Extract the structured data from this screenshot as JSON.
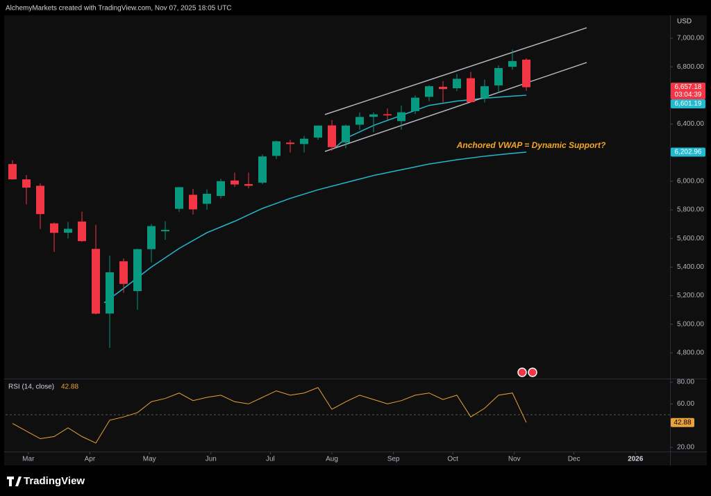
{
  "header": "AlchemyMarkets created with TradingView.com, Nov 07, 2025 18:05 UTC",
  "brand": "TradingView",
  "chart_data": [
    {
      "type": "candlestick",
      "currency": "USD",
      "annotation": "Anchored VWAP = Dynamic Support?",
      "countdown": "03:04:39",
      "up_color": "#089981",
      "down_color": "#f23645",
      "x": [
        0,
        1,
        2,
        3,
        4,
        5,
        6,
        7,
        8,
        9,
        10,
        11,
        12,
        13,
        14,
        15,
        16,
        17,
        18,
        19,
        20,
        21,
        22,
        23,
        24,
        25,
        26,
        27,
        28,
        29,
        30,
        31,
        32,
        33,
        34,
        35,
        36,
        37
      ],
      "open": [
        6120,
        6013,
        5968,
        5705,
        5640,
        5718,
        5527,
        5075,
        5440,
        5232,
        5525,
        5650,
        5807,
        5905,
        5842,
        5897,
        6005,
        5980,
        5990,
        6177,
        6270,
        6260,
        6305,
        6390,
        6270,
        6395,
        6450,
        6468,
        6420,
        6490,
        6590,
        6660,
        6650,
        6720,
        6580,
        6670,
        6800,
        6850
      ],
      "high": [
        6147,
        6043,
        5986,
        5711,
        5715,
        5787,
        5695,
        5481,
        5460,
        5528,
        5700,
        5720,
        5960,
        5945,
        5943,
        6016,
        6060,
        6060,
        6187,
        6284,
        6290,
        6316,
        6390,
        6427,
        6395,
        6481,
        6480,
        6508,
        6530,
        6600,
        6672,
        6700,
        6750,
        6765,
        6710,
        6810,
        6920,
        6860
      ],
      "low": [
        6010,
        5837,
        5666,
        5505,
        5600,
        5576,
        5069,
        4835,
        5220,
        5101,
        5433,
        5590,
        5786,
        5767,
        5800,
        5880,
        5960,
        5950,
        5980,
        6155,
        6200,
        6200,
        6290,
        6212,
        6230,
        6360,
        6343,
        6430,
        6360,
        6470,
        6560,
        6550,
        6630,
        6550,
        6550,
        6620,
        6780,
        6631
      ],
      "close": [
        6013,
        5955,
        5770,
        5639,
        5667,
        5581,
        5074,
        5363,
        5282,
        5525,
        5686,
        5660,
        5958,
        5803,
        5912,
        6000,
        5977,
        5968,
        6173,
        6279,
        6260,
        6297,
        6389,
        6238,
        6389,
        6449,
        6467,
        6460,
        6482,
        6584,
        6664,
        6644,
        6716,
        6553,
        6664,
        6791,
        6840,
        6657
      ],
      "lines": [
        {
          "color": "#22b8cf",
          "x": [
            6.6,
            8,
            10,
            12,
            14,
            16,
            18,
            20,
            22,
            24,
            26,
            28,
            30,
            32,
            34,
            36,
            37
          ],
          "values": [
            5150,
            5250,
            5400,
            5530,
            5640,
            5720,
            5810,
            5880,
            5940,
            5990,
            6040,
            6080,
            6120,
            6150,
            6175,
            6195,
            6202.96
          ]
        },
        {
          "color": "#22b8cf",
          "x": [
            23.3,
            24,
            26,
            28,
            30,
            32,
            34,
            36,
            37
          ],
          "values": [
            6240,
            6300,
            6390,
            6460,
            6530,
            6560,
            6580,
            6595,
            6601.19
          ]
        },
        {
          "color": "#b2b5be",
          "x": [
            22.5,
            41.35
          ],
          "values": [
            6466,
            7073
          ]
        },
        {
          "color": "#b2b5be",
          "x": [
            22.5,
            41.35
          ],
          "values": [
            6208,
            6830
          ]
        }
      ],
      "price_labels": [
        {
          "value": 6657.18,
          "label": "6,657.18",
          "color": "#f23645"
        },
        {
          "value": 6601.19,
          "label": "6,601.19",
          "color": "#22b8cf"
        },
        {
          "value": 6202.96,
          "label": "6,202.96",
          "color": "#22b8cf"
        }
      ],
      "xlim": [
        -0.5,
        47.35
      ],
      "xticks": [
        {
          "value": 1.14,
          "label": "Mar"
        },
        {
          "value": 5.57,
          "label": "Apr"
        },
        {
          "value": 9.86,
          "label": "May"
        },
        {
          "value": 14.29,
          "label": "Jun"
        },
        {
          "value": 18.57,
          "label": "Jul"
        },
        {
          "value": 23,
          "label": "Aug"
        },
        {
          "value": 27.43,
          "label": "Sep"
        },
        {
          "value": 31.71,
          "label": "Oct"
        },
        {
          "value": 36.14,
          "label": "Nov"
        },
        {
          "value": 40.43,
          "label": "Dec"
        },
        {
          "value": 44.86,
          "label": "2026"
        }
      ],
      "ylim": [
        4620,
        7160
      ],
      "yticks": [
        {
          "value": 4800,
          "label": "4,800.00"
        },
        {
          "value": 5000,
          "label": "5,000.00"
        },
        {
          "value": 5200,
          "label": "5,200.00"
        },
        {
          "value": 5400,
          "label": "5,400.00"
        },
        {
          "value": 5600,
          "label": "5,600.00"
        },
        {
          "value": 5800,
          "label": "5,800.00"
        },
        {
          "value": 6000,
          "label": "6,000.00"
        },
        {
          "value": 6200,
          "label": "6,200.00"
        },
        {
          "value": 6400,
          "label": "6,400.00"
        },
        {
          "value": 6600,
          "label": "6,600.00"
        },
        {
          "value": 6800,
          "label": "6,800.00"
        },
        {
          "value": 7000,
          "label": "7,000.00"
        }
      ],
      "grid": false
    },
    {
      "type": "line",
      "title": "RSI (14, close)",
      "color": "#e9a33a",
      "x": [
        0,
        1,
        2,
        3,
        4,
        5,
        6,
        7,
        8,
        9,
        10,
        11,
        12,
        13,
        14,
        15,
        16,
        17,
        18,
        19,
        20,
        21,
        22,
        23,
        24,
        25,
        26,
        27,
        28,
        29,
        30,
        31,
        32,
        33,
        34,
        35,
        36,
        37
      ],
      "values": [
        42,
        35,
        28,
        30,
        38,
        30,
        24,
        45,
        48,
        52,
        62,
        65,
        70,
        63,
        66,
        68,
        62,
        60,
        66,
        72,
        68,
        70,
        75,
        55,
        62,
        68,
        64,
        60,
        63,
        68,
        70,
        64,
        68,
        48,
        56,
        68,
        70,
        42.88
      ],
      "hlines": [
        50
      ],
      "xlim": [
        -0.5,
        47.35
      ],
      "ylim": [
        16.2,
        82.6
      ],
      "yticks": [
        {
          "value": 20,
          "label": "20.00"
        },
        {
          "value": 60,
          "label": "60.00"
        },
        {
          "value": 80,
          "label": "80.00"
        }
      ],
      "grid": false
    }
  ]
}
